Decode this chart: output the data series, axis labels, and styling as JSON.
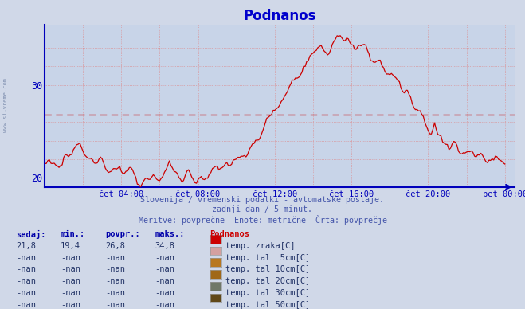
{
  "title": "Podnanos",
  "title_color": "#0000cc",
  "background_color": "#d0d8e8",
  "plot_bg_color": "#c8d4e8",
  "line_color": "#cc0000",
  "grid_color": "#e08080",
  "axis_color": "#0000bb",
  "avg_line_value": 26.8,
  "avg_line_color": "#cc0000",
  "ylim": [
    19.0,
    36.5
  ],
  "yticks": [
    20,
    30
  ],
  "xtick_labels": [
    "čet 04:00",
    "čet 08:00",
    "čet 12:00",
    "čet 16:00",
    "čet 20:00",
    "pet 00:00"
  ],
  "subtitle_line1": "Slovenija / vremenski podatki - avtomatske postaje.",
  "subtitle_line2": "zadnji dan / 5 minut.",
  "subtitle_line3": "Meritve: povprečne  Enote: metrične  Črta: povprečje",
  "subtitle_color": "#4455aa",
  "table_headers": [
    "sedaj:",
    "min.:",
    "povpr.:",
    "maks.:"
  ],
  "table_row1": [
    "21,8",
    "19,4",
    "26,8",
    "34,8"
  ],
  "table_nan": [
    "-nan",
    "-nan",
    "-nan",
    "-nan"
  ],
  "legend_title": "Podnanos",
  "legend_items": [
    {
      "color": "#cc0000",
      "label": "temp. zraka[C]"
    },
    {
      "color": "#d4a0a0",
      "label": "temp. tal  5cm[C]"
    },
    {
      "color": "#b87820",
      "label": "temp. tal 10cm[C]"
    },
    {
      "color": "#a06818",
      "label": "temp. tal 20cm[C]"
    },
    {
      "color": "#707868",
      "label": "temp. tal 30cm[C]"
    },
    {
      "color": "#604818",
      "label": "temp. tal 50cm[C]"
    }
  ],
  "n_points": 289,
  "watermark": "www.si-vreme.com"
}
